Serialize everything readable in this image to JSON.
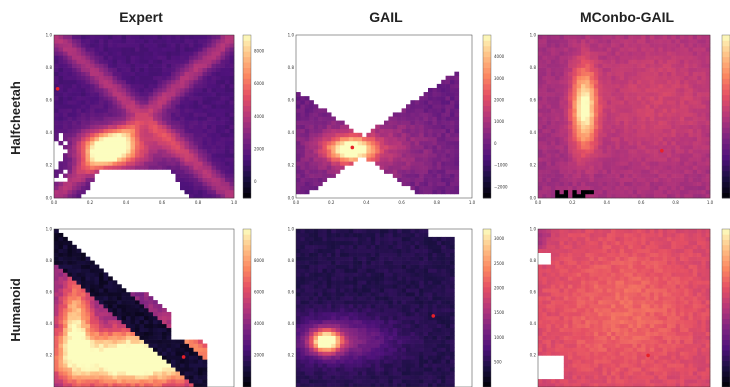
{
  "columns": [
    "Expert",
    "GAIL",
    "MConbo-GAIL"
  ],
  "rows": [
    "Halfcheetah",
    "Humanoid"
  ],
  "chart_data": [
    {
      "type": "heatmap",
      "row": "Halfcheetah",
      "column": "Expert",
      "x_ticks": [
        "0.0",
        "0.2",
        "0.4",
        "0.6",
        "0.8",
        "1.0"
      ],
      "y_ticks": [
        "0.0",
        "0.2",
        "0.4",
        "0.6",
        "0.8",
        "1.0"
      ],
      "xlim": [
        0,
        1
      ],
      "ylim": [
        0,
        1
      ],
      "colorbar_ticks": [
        "0",
        "2000",
        "4000",
        "6000",
        "8000"
      ],
      "colorbar_range": [
        -1000,
        9000
      ],
      "hotspot": [
        0.3,
        0.3
      ],
      "red_point": [
        0.02,
        0.67
      ]
    },
    {
      "type": "heatmap",
      "row": "Halfcheetah",
      "column": "GAIL",
      "x_ticks": [
        "0.0",
        "0.2",
        "0.4",
        "0.6",
        "0.8",
        "1.0"
      ],
      "y_ticks": [
        "0.0",
        "0.2",
        "0.4",
        "0.6",
        "0.8",
        "1.0"
      ],
      "xlim": [
        0,
        1
      ],
      "ylim": [
        0,
        1
      ],
      "colorbar_ticks": [
        "−2000",
        "−1000",
        "0",
        "1000",
        "2000",
        "3000",
        "4000"
      ],
      "colorbar_range": [
        -2500,
        5000
      ],
      "hotspot": [
        0.3,
        0.3
      ],
      "red_point": [
        0.32,
        0.31
      ]
    },
    {
      "type": "heatmap",
      "row": "Halfcheetah",
      "column": "MConbo-GAIL",
      "x_ticks": [
        "0.0",
        "0.2",
        "0.4",
        "0.6",
        "0.8",
        "1.0"
      ],
      "y_ticks": [
        "0.0",
        "0.2",
        "0.4",
        "0.6",
        "0.8",
        "1.0"
      ],
      "xlim": [
        0,
        1
      ],
      "ylim": [
        0,
        1
      ],
      "colorbar_ticks": [],
      "colorbar_range": [
        0,
        1
      ],
      "hotspot": [
        0.26,
        0.55
      ],
      "red_point": [
        0.72,
        0.29
      ]
    },
    {
      "type": "heatmap",
      "row": "Humanoid",
      "column": "Expert",
      "x_ticks": [],
      "y_ticks": [
        "0.2",
        "0.4",
        "0.6",
        "0.8",
        "1.0"
      ],
      "xlim": [
        0,
        1
      ],
      "ylim": [
        0,
        1
      ],
      "colorbar_ticks": [
        "2000",
        "4000",
        "6000",
        "8000"
      ],
      "colorbar_range": [
        0,
        10000
      ],
      "hotspot": [
        0.45,
        0.2
      ],
      "red_point": [
        0.72,
        0.19
      ]
    },
    {
      "type": "heatmap",
      "row": "Humanoid",
      "column": "GAIL",
      "x_ticks": [],
      "y_ticks": [
        "0.2",
        "0.4",
        "0.6",
        "0.8",
        "1.0"
      ],
      "xlim": [
        0,
        1
      ],
      "ylim": [
        0,
        1
      ],
      "colorbar_ticks": [
        "500",
        "1000",
        "1500",
        "2000",
        "2500",
        "3000"
      ],
      "colorbar_range": [
        0,
        3200
      ],
      "hotspot": [
        0.17,
        0.29
      ],
      "red_point": [
        0.78,
        0.45
      ]
    },
    {
      "type": "heatmap",
      "row": "Humanoid",
      "column": "MConbo-GAIL",
      "x_ticks": [],
      "y_ticks": [
        "0.2",
        "0.4",
        "0.6",
        "0.8",
        "1.0"
      ],
      "xlim": [
        0,
        1
      ],
      "ylim": [
        0,
        1
      ],
      "colorbar_ticks": [],
      "colorbar_range": [
        0,
        1
      ],
      "hotspot": [
        0.5,
        0.5
      ],
      "red_point": [
        0.64,
        0.2
      ]
    }
  ]
}
